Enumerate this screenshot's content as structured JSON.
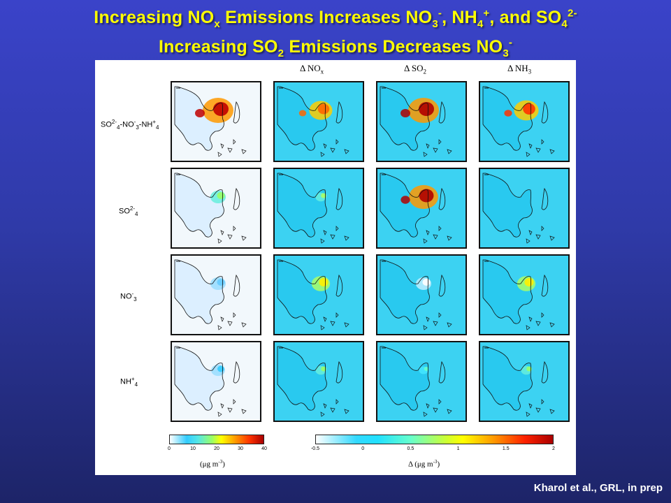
{
  "title": {
    "line1": {
      "a": "Increasing NO",
      "a_sub": "x",
      "b": " Emissions Increases NO",
      "b_sub": "3",
      "b_sup": "-",
      "c": ", NH",
      "c_sub": "4",
      "c_sup": "+",
      "d": ", and SO",
      "d_sub": "4",
      "d_sup": "2-"
    },
    "line2": {
      "a": "Increasing SO",
      "a_sub": "2",
      "b": " Emissions Decreases NO",
      "b_sub": "3",
      "b_sup": "-"
    }
  },
  "columns": [
    {
      "name": "",
      "label_main": "",
      "label_sub": ""
    },
    {
      "name": "delta-nox",
      "label_main": "Δ NO",
      "label_sub": "x"
    },
    {
      "name": "delta-so2",
      "label_main": "Δ SO",
      "label_sub": "2"
    },
    {
      "name": "delta-nh3",
      "label_main": "Δ NH",
      "label_sub": "3"
    }
  ],
  "rows": [
    {
      "label_html": "SO<sup>2-</sup><sub>4</sub>-NO<sup>-</sup><sub>3</sub>-NH<sup>+</sup><sub>4</sub>"
    },
    {
      "label_html": "SO<sup>2-</sup><sub>4</sub>"
    },
    {
      "label_html": "NO<sup>-</sup><sub>3</sub>"
    },
    {
      "label_html": "NH<sup>+</sup><sub>4</sub>"
    }
  ],
  "colorbar_left": {
    "ticks": [
      "0",
      "10",
      "20",
      "30",
      "40"
    ],
    "unit_main": "(μg m",
    "unit_sup": "-3",
    "unit_end": ")"
  },
  "colorbar_right": {
    "ticks": [
      "-0.5",
      "0",
      "0.5",
      "1",
      "1.5",
      "2"
    ],
    "unit_main": "Δ (μg m",
    "unit_sup": "-3",
    "unit_end": ")"
  },
  "credit": "Kharol et al., GRL, in prep",
  "colors": {
    "background_top": "#3a43c9",
    "background_bottom": "#1d2468",
    "title": "#ffff00",
    "credit": "#ffffff"
  }
}
